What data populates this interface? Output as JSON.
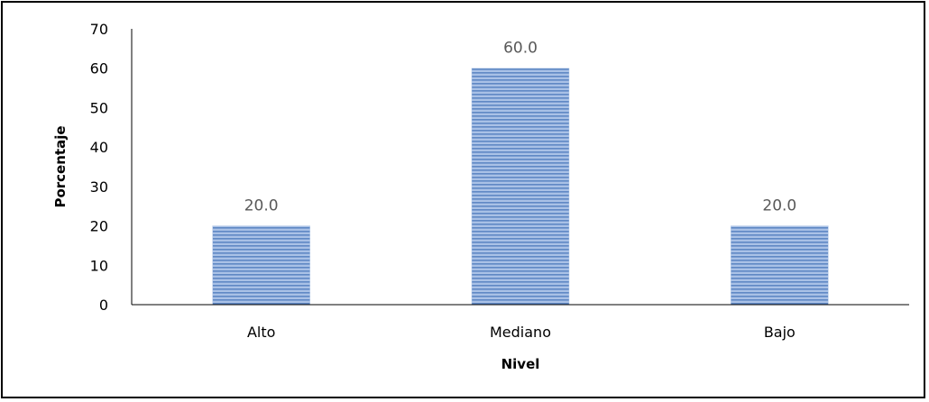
{
  "chart_data": {
    "type": "bar",
    "categories": [
      "Alto",
      "Mediano",
      "Bajo"
    ],
    "values": [
      20.0,
      60.0,
      20.0
    ],
    "data_labels": [
      "20.0",
      "60.0",
      "20.0"
    ],
    "xlabel": "Nivel",
    "ylabel": "Porcentaje",
    "ylim": [
      0,
      70
    ],
    "yticks": [
      0,
      10,
      20,
      30,
      40,
      50,
      60,
      70
    ],
    "grid": false,
    "legend": "none",
    "bar_color": "#8eaedc",
    "bar_stripe_color": "#5f88c4"
  }
}
